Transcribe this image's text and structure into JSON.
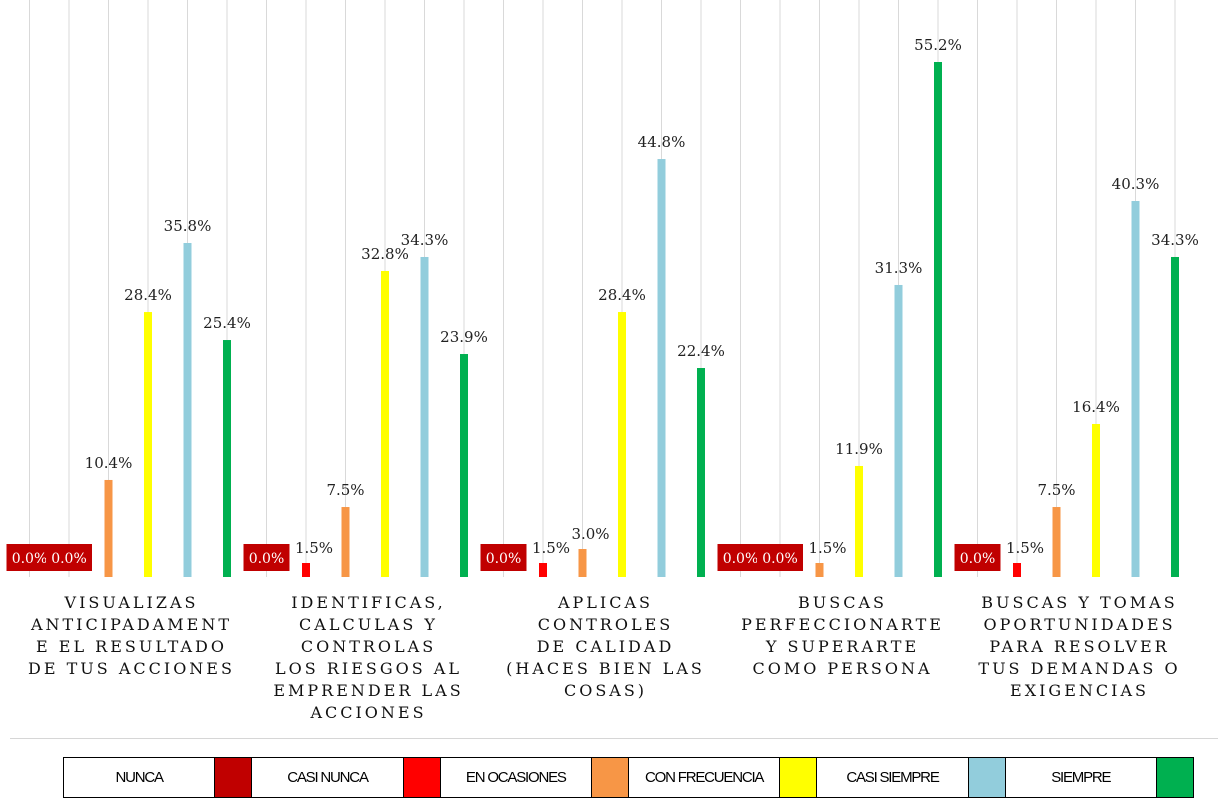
{
  "chart_data": {
    "type": "bar",
    "categories": [
      [
        "VISUALIZAS",
        "ANTICIPADAMENT",
        "E EL RESULTADO",
        "DE TUS ACCIONES"
      ],
      [
        "IDENTIFICAS,",
        "CALCULAS Y",
        "CONTROLAS",
        "LOS RIESGOS AL",
        "EMPRENDER LAS",
        "ACCIONES"
      ],
      [
        "APLICAS",
        "CONTROLES",
        "DE CALIDAD",
        "(HACES BIEN LAS",
        "COSAS)"
      ],
      [
        "BUSCAS",
        "PERFECCIONARTE",
        "Y SUPERARTE",
        "COMO PERSONA"
      ],
      [
        "BUSCAS Y TOMAS",
        "OPORTUNIDADES",
        "PARA RESOLVER",
        "TUS DEMANDAS O",
        "EXIGENCIAS"
      ]
    ],
    "series": [
      {
        "name": "NUNCA",
        "color": "#c00000",
        "values": [
          0.0,
          0.0,
          0.0,
          0.0,
          0.0
        ]
      },
      {
        "name": "CASI NUNCA",
        "color": "#c00000",
        "values": [
          0.0,
          1.5,
          1.5,
          0.0,
          1.5
        ]
      },
      {
        "name": "EN OCASIONES",
        "color": "#ff0000",
        "values": [
          null,
          null,
          null,
          1.5,
          null
        ]
      },
      {
        "name": "CON FRECUENCIA",
        "color": "#f79646",
        "values": [
          10.4,
          7.5,
          3.0,
          11.9,
          7.5
        ]
      },
      {
        "name": "CASI SIEMPRE",
        "color": "#ffff00",
        "values": [
          28.4,
          32.8,
          28.4,
          31.3,
          16.4
        ]
      },
      {
        "name": "SIEMPRE",
        "color": "#92cddc",
        "values": [
          35.8,
          34.3,
          44.8,
          55.2,
          40.3
        ]
      },
      {
        "name": "",
        "color": "#00b050",
        "values": [
          25.4,
          23.9,
          22.4,
          null,
          34.3
        ]
      }
    ],
    "value_labels": [
      [
        "0.0%",
        "0.0%",
        "10.4%",
        "28.4%",
        "35.8%",
        "25.4%"
      ],
      [
        "0.0%",
        "1.5%",
        "7.5%",
        "32.8%",
        "34.3%",
        "23.9%"
      ],
      [
        "0.0%",
        "1.5%",
        "3.0%",
        "28.4%",
        "44.8%",
        "22.4%"
      ],
      [
        "0.0%",
        "0.0%",
        "1.5%",
        "11.9%",
        "31.3%",
        "55.2%"
      ],
      [
        "0.0%",
        "1.5%",
        "7.5%",
        "16.4%",
        "40.3%",
        "34.3%"
      ]
    ],
    "ylim": [
      0,
      60
    ],
    "grid": "vertical",
    "legend_position": "bottom"
  },
  "legend": [
    {
      "label": "NUNCA",
      "color": "#c00000"
    },
    {
      "label": "CASI NUNCA",
      "color": "#ff0000"
    },
    {
      "label": "EN OCASIONES",
      "color": "#f79646"
    },
    {
      "label": "CON FRECUENCIA",
      "color": "#ffff00"
    },
    {
      "label": "CASI SIEMPRE",
      "color": "#92cddc"
    },
    {
      "label": "SIEMPRE",
      "color": "#00b050"
    }
  ]
}
